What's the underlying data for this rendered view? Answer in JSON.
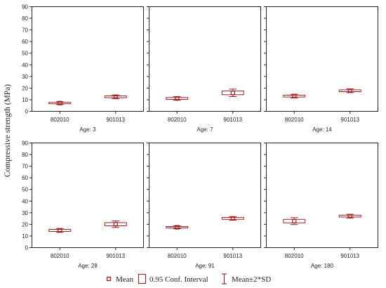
{
  "chart_data": {
    "type": "box",
    "ylabel": "Compressive strength (MPa)",
    "ylim": [
      0,
      90
    ],
    "yticks": [
      "0",
      "10",
      "20",
      "30",
      "40",
      "50",
      "60",
      "70",
      "80",
      "90"
    ],
    "categories": [
      "802010",
      "901013"
    ],
    "grid": false,
    "legend_position": "bottom",
    "colors": {
      "box": "#a51e1e",
      "axis": "#222222"
    },
    "legend": {
      "mean": "Mean",
      "ci": "0.95 Conf. Interval",
      "sd": "Mean±2*SD"
    },
    "panels": [
      {
        "label": "Age: 3",
        "groups": [
          {
            "category": "802010",
            "mean": 6.8,
            "ci": [
              6.2,
              7.4
            ],
            "sd": [
              5.6,
              8.0
            ]
          },
          {
            "category": "901013",
            "mean": 12.2,
            "ci": [
              11.4,
              13.0
            ],
            "sd": [
              10.6,
              13.8
            ]
          }
        ]
      },
      {
        "label": "Age: 7",
        "groups": [
          {
            "category": "802010",
            "mean": 10.8,
            "ci": [
              10.0,
              11.6
            ],
            "sd": [
              9.2,
              12.4
            ]
          },
          {
            "category": "901013",
            "mean": 15.6,
            "ci": [
              14.0,
              17.2
            ],
            "sd": [
              12.4,
              18.8
            ]
          }
        ]
      },
      {
        "label": "Age: 14",
        "groups": [
          {
            "category": "802010",
            "mean": 12.8,
            "ci": [
              12.0,
              13.6
            ],
            "sd": [
              11.2,
              14.4
            ]
          },
          {
            "category": "901013",
            "mean": 17.4,
            "ci": [
              16.6,
              18.2
            ],
            "sd": [
              15.8,
              19.0
            ]
          }
        ]
      },
      {
        "label": "Age: 28",
        "groups": [
          {
            "category": "802010",
            "mean": 14.5,
            "ci": [
              13.6,
              15.4
            ],
            "sd": [
              12.8,
              16.2
            ]
          },
          {
            "category": "901013",
            "mean": 19.8,
            "ci": [
              18.4,
              21.2
            ],
            "sd": [
              17.0,
              22.6
            ]
          }
        ]
      },
      {
        "label": "Age: 91",
        "groups": [
          {
            "category": "802010",
            "mean": 17.2,
            "ci": [
              16.6,
              17.8
            ],
            "sd": [
              16.0,
              18.4
            ]
          },
          {
            "category": "901013",
            "mean": 24.8,
            "ci": [
              24.0,
              25.6
            ],
            "sd": [
              23.2,
              26.4
            ]
          }
        ]
      },
      {
        "label": "Age: 180",
        "groups": [
          {
            "category": "802010",
            "mean": 22.5,
            "ci": [
              21.0,
              24.0
            ],
            "sd": [
              19.5,
              25.5
            ]
          },
          {
            "category": "901013",
            "mean": 26.8,
            "ci": [
              26.0,
              27.6
            ],
            "sd": [
              25.2,
              28.4
            ]
          }
        ]
      }
    ]
  }
}
